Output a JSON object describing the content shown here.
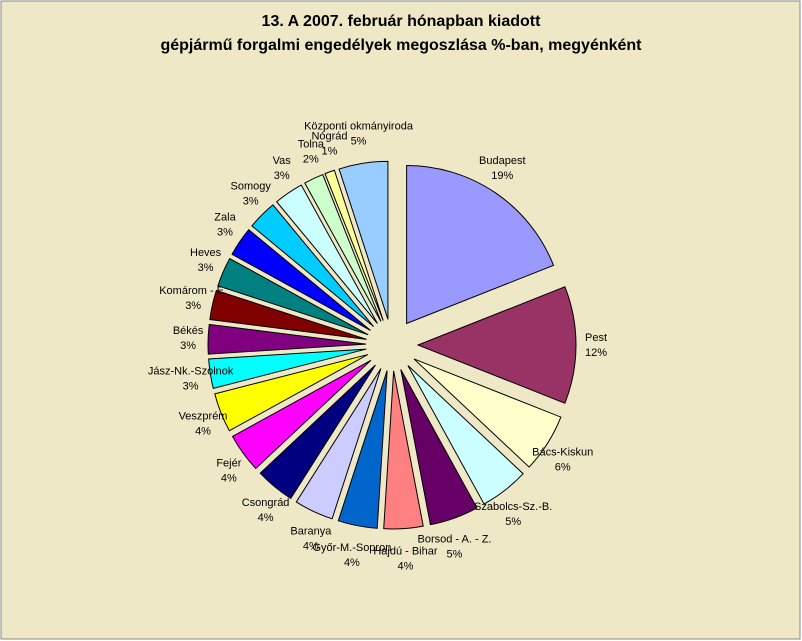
{
  "chart_data": {
    "type": "pie",
    "title": [
      "13. A  2007. február hónapban kiadott",
      "gépjármű forgalmi engedélyek megoszlása %-ban, megyénként"
    ],
    "categories": [
      "Budapest",
      "Pest",
      "Bács-Kiskun",
      "Szabolcs-Sz.-B.",
      "Borsod - A. - Z.",
      "Hajdú - Bihar",
      "Győr-M.-Sopron",
      "Baranya",
      "Csongrád",
      "Fejér",
      "Veszprém",
      "Jász-Nk.-Szolnok",
      "Békés",
      "Komárom - E.",
      "Heves",
      "Zala",
      "Somogy",
      "Vas",
      "Tolna",
      "Nógrád",
      "Központi okmányiroda"
    ],
    "values": [
      19,
      12,
      6,
      5,
      5,
      4,
      4,
      4,
      4,
      4,
      4,
      3,
      3,
      3,
      3,
      3,
      3,
      3,
      2,
      1,
      5
    ],
    "value_labels": [
      "19%",
      "12%",
      "6%",
      "5%",
      "5%",
      "4%",
      "4%",
      "4%",
      "4%",
      "4%",
      "4%",
      "3%",
      "3%",
      "3%",
      "3%",
      "3%",
      "3%",
      "3%",
      "2%",
      "1%",
      "5%"
    ],
    "colors": [
      "#9999ff",
      "#993366",
      "#ffffcc",
      "#ccffff",
      "#660066",
      "#ff8080",
      "#0066cc",
      "#ccccff",
      "#000080",
      "#ff00ff",
      "#ffff00",
      "#00ffff",
      "#800080",
      "#800000",
      "#008080",
      "#0000ff",
      "#00ccff",
      "#ccffff",
      "#ccffcc",
      "#ffff99",
      "#99ccff"
    ]
  }
}
